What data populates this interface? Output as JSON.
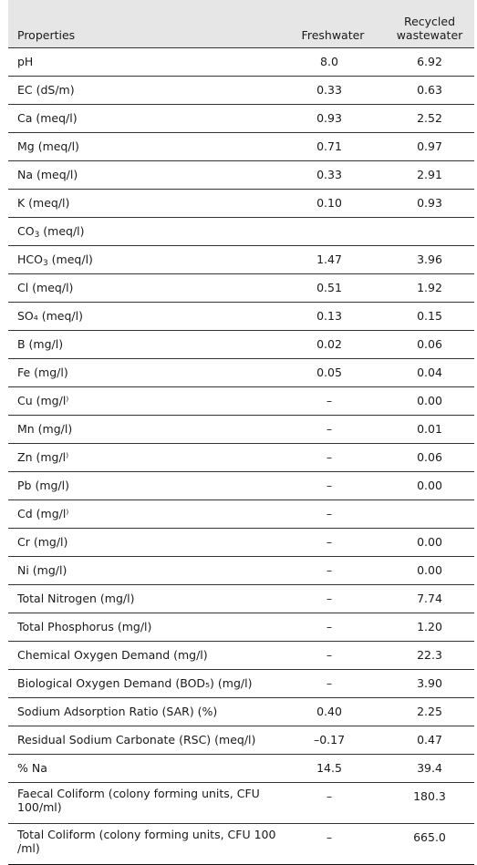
{
  "table": {
    "headers": {
      "properties": "Properties",
      "freshwater": "Freshwater",
      "recycled": "Recycled wastewater"
    },
    "rows": [
      {
        "name": "pH",
        "fresh": "8.0",
        "recycled": "6.92"
      },
      {
        "name": "EC (dS/m)",
        "fresh": "0.33",
        "recycled": "0.63"
      },
      {
        "name": "Ca (meq/l)",
        "fresh": "0.93",
        "recycled": "2.52"
      },
      {
        "name": "Mg (meq/l)",
        "fresh": "0.71",
        "recycled": "0.97"
      },
      {
        "name": "Na (meq/l)",
        "fresh": "0.33",
        "recycled": "2.91"
      },
      {
        "name": "K (meq/l)",
        "fresh": "0.10",
        "recycled": "0.93"
      },
      {
        "name_pre": "CO",
        "name_sub": "3",
        "name_post": " (meq/l)",
        "fresh": "",
        "recycled": ""
      },
      {
        "name_pre": "HCO",
        "name_sub": "3",
        "name_post": " (meq/l)",
        "fresh": "1.47",
        "recycled": "3.96"
      },
      {
        "name": "Cl (meq/l)",
        "fresh": "0.51",
        "recycled": "1.92"
      },
      {
        "name": "SO₄ (meq/l)",
        "fresh": "0.13",
        "recycled": "0.15"
      },
      {
        "name": "B (mg/l)",
        "fresh": "0.02",
        "recycled": "0.06"
      },
      {
        "name": "Fe (mg/l)",
        "fresh": "0.05",
        "recycled": "0.04"
      },
      {
        "name": "Cu (mg/l⁾",
        "fresh": "–",
        "recycled": "0.00"
      },
      {
        "name": "Mn (mg/l)",
        "fresh": "–",
        "recycled": "0.01"
      },
      {
        "name": "Zn (mg/l⁾",
        "fresh": "–",
        "recycled": "0.06"
      },
      {
        "name": "Pb (mg/l)",
        "fresh": "–",
        "recycled": "0.00"
      },
      {
        "name": "Cd (mg/l⁾",
        "fresh": "–",
        "recycled": ""
      },
      {
        "name": "Cr (mg/l)",
        "fresh": "–",
        "recycled": "0.00"
      },
      {
        "name": "Ni (mg/l)",
        "fresh": "–",
        "recycled": "0.00"
      },
      {
        "name": "Total Nitrogen (mg/l)",
        "fresh": "–",
        "recycled": "7.74"
      },
      {
        "name": "Total Phosphorus (mg/l)",
        "fresh": "–",
        "recycled": "1.20"
      },
      {
        "name": "Chemical Oxygen Demand (mg/l)",
        "fresh": "–",
        "recycled": "22.3"
      },
      {
        "name": "Biological Oxygen Demand (BOD₅) (mg/l)",
        "fresh": "–",
        "recycled": "3.90"
      },
      {
        "name": "Sodium Adsorption Ratio (SAR) (%)",
        "fresh": "0.40",
        "recycled": "2.25"
      },
      {
        "name": "Residual Sodium Carbonate (RSC) (meq/l)",
        "fresh": "–0.17",
        "recycled": "0.47"
      },
      {
        "name": "% Na",
        "fresh": "14.5",
        "recycled": "39.4"
      },
      {
        "name": "Faecal Coliform (colony forming units, CFU 100/ml)",
        "fresh": "–",
        "recycled": "180.3"
      },
      {
        "name": "Total Coliform (colony forming units, CFU 100 /ml)",
        "fresh": "–",
        "recycled": "665.0"
      }
    ]
  }
}
